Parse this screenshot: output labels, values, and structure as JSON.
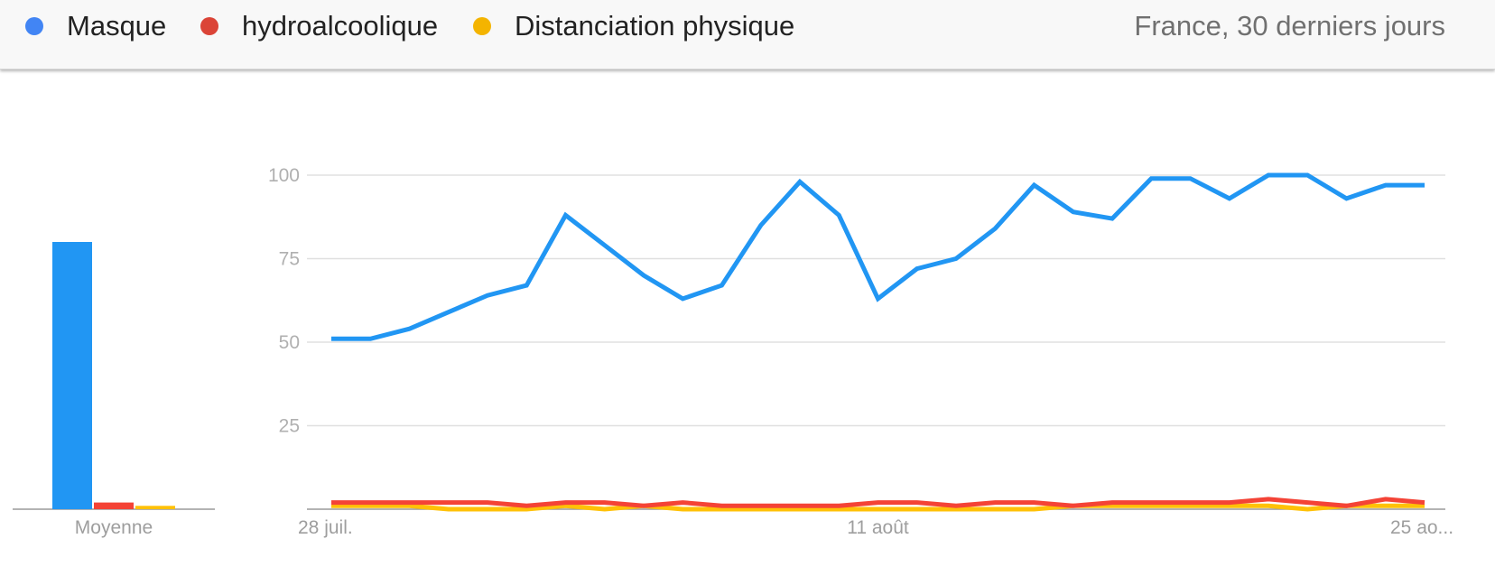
{
  "legend": {
    "items": [
      {
        "label": "Masque",
        "color": "#4285f4"
      },
      {
        "label": "hydroalcoolique",
        "color": "#db4437"
      },
      {
        "label": "Distanciation physique",
        "color": "#f4b400"
      }
    ],
    "scope": "France, 30 derniers jours"
  },
  "chart_data": [
    {
      "type": "bar",
      "xlabel": "Moyenne",
      "series": [
        {
          "name": "Masque",
          "color": "#2196f3",
          "values": [
            80
          ]
        },
        {
          "name": "hydroalcoolique",
          "color": "#f44336",
          "values": [
            2
          ]
        },
        {
          "name": "Distanciation physique",
          "color": "#ffc107",
          "values": [
            1
          ]
        }
      ],
      "ylim": [
        0,
        100
      ]
    },
    {
      "type": "line",
      "x_tick_labels": [
        "28 juil.",
        "11 août",
        "25 ao..."
      ],
      "y_ticks": [
        25,
        50,
        75,
        100
      ],
      "ylim": [
        0,
        100
      ],
      "grid": true,
      "series": [
        {
          "name": "Masque",
          "color": "#2196f3",
          "values": [
            51,
            51,
            54,
            59,
            64,
            67,
            88,
            79,
            70,
            63,
            67,
            85,
            98,
            88,
            63,
            72,
            75,
            84,
            97,
            89,
            87,
            99,
            99,
            93,
            100,
            100,
            93,
            97,
            97
          ]
        },
        {
          "name": "hydroalcoolique",
          "color": "#f44336",
          "values": [
            2,
            2,
            2,
            2,
            2,
            1,
            2,
            2,
            1,
            2,
            1,
            1,
            1,
            1,
            2,
            2,
            1,
            2,
            2,
            1,
            2,
            2,
            2,
            2,
            3,
            2,
            1,
            3,
            2
          ]
        },
        {
          "name": "Distanciation physique",
          "color": "#ffc107",
          "values": [
            1,
            1,
            1,
            0,
            0,
            0,
            1,
            0,
            1,
            0,
            0,
            0,
            0,
            0,
            0,
            0,
            0,
            0,
            0,
            1,
            1,
            1,
            1,
            1,
            1,
            0,
            1,
            1,
            1
          ]
        }
      ]
    }
  ]
}
